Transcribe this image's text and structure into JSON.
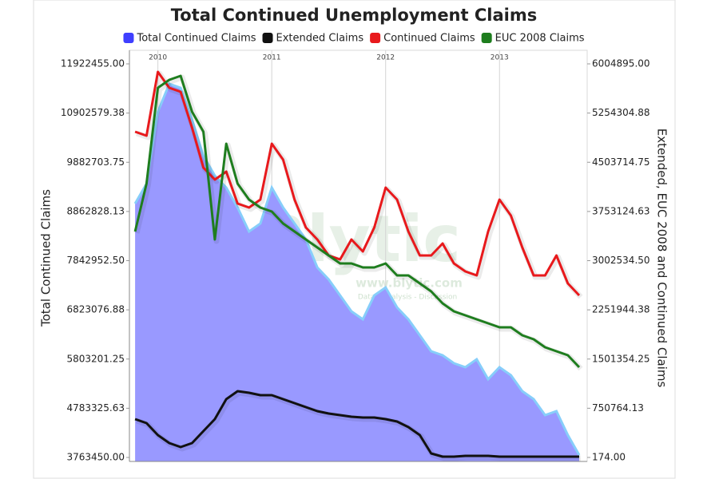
{
  "chart_data": {
    "type": "line",
    "title": "Total Continued Unemployment Claims",
    "y_label": "Total Continued Claims",
    "y2_label": "Extended, EUC 2008 and Continued Claims",
    "watermark": [
      "Blytic",
      "www.blytic.com",
      "Data - Analysis - Discussion"
    ],
    "x": [
      2009.8,
      2009.9,
      2010.0,
      2010.1,
      2010.2,
      2010.3,
      2010.4,
      2010.5,
      2010.6,
      2010.7,
      2010.8,
      2010.9,
      2011.0,
      2011.1,
      2011.2,
      2011.3,
      2011.4,
      2011.5,
      2011.6,
      2011.7,
      2011.8,
      2011.9,
      2012.0,
      2012.1,
      2012.2,
      2012.3,
      2012.4,
      2012.5,
      2012.6,
      2012.7,
      2012.8,
      2012.9,
      2013.0,
      2013.1,
      2013.2,
      2013.3,
      2013.4,
      2013.5,
      2013.6,
      2013.7
    ],
    "xlim": [
      2009.75,
      2013.77
    ],
    "xticks": [
      2010,
      2011,
      2012,
      2013
    ],
    "ylim": [
      3763450,
      11922455
    ],
    "yticks": [
      {
        "value": 3763450,
        "label": "3763450.00"
      },
      {
        "value": 4783325.63,
        "label": "4783325.63"
      },
      {
        "value": 5803201.25,
        "label": "5803201.25"
      },
      {
        "value": 6823076.88,
        "label": "6823076.88"
      },
      {
        "value": 7842952.5,
        "label": "7842952.50"
      },
      {
        "value": 8862828.13,
        "label": "8862828.13"
      },
      {
        "value": 9882703.75,
        "label": "9882703.75"
      },
      {
        "value": 10902579.38,
        "label": "10902579.38"
      },
      {
        "value": 11922455,
        "label": "11922455.00"
      }
    ],
    "y2lim": [
      174,
      6004895
    ],
    "y2ticks": [
      {
        "value": 174,
        "label": "174.00"
      },
      {
        "value": 750764.13,
        "label": "750764.13"
      },
      {
        "value": 1501354.25,
        "label": "1501354.25"
      },
      {
        "value": 2251944.38,
        "label": "2251944.38"
      },
      {
        "value": 3002534.5,
        "label": "3002534.50"
      },
      {
        "value": 3753124.63,
        "label": "3753124.63"
      },
      {
        "value": 4503714.75,
        "label": "4503714.75"
      },
      {
        "value": 5254304.88,
        "label": "5254304.88"
      },
      {
        "value": 6004895,
        "label": "6004895.00"
      }
    ],
    "grid": true,
    "legend": "top",
    "series": [
      {
        "name": "Total Continued Claims",
        "color": "#3f3fff",
        "area": true,
        "fill": "#9999ff",
        "edge": "#87cefa",
        "values": [
          9026000,
          9439000,
          10929000,
          11508000,
          11425000,
          10763000,
          10018000,
          9605000,
          9357000,
          8943000,
          8447000,
          8612000,
          9357000,
          8943000,
          8612000,
          8281000,
          7702000,
          7454000,
          7123000,
          6792000,
          6626000,
          7123000,
          7288000,
          6874000,
          6626000,
          6295000,
          5964000,
          5882000,
          5716000,
          5633000,
          5799000,
          5385000,
          5633000,
          5468000,
          5137000,
          4971000,
          4640000,
          4723000,
          4227000,
          3813000
        ]
      },
      {
        "name": "Extended Claims",
        "color": "#111111",
        "axis": "y2",
        "values": [
          584800,
          523900,
          341200,
          219400,
          158500,
          219400,
          402100,
          584800,
          889300,
          1011100,
          986800,
          950200,
          950200,
          889300,
          828400,
          767500,
          706600,
          670100,
          645700,
          621400,
          609200,
          609200,
          584800,
          548300,
          463000,
          341200,
          61100,
          12400,
          12400,
          24500,
          24500,
          24500,
          12400,
          12400,
          12400,
          12400,
          12400,
          12400,
          12400,
          12400
        ]
      },
      {
        "name": "Continued Claims",
        "color": "#e8191c",
        "axis": "y2",
        "values": [
          4969600,
          4908700,
          5883100,
          5639500,
          5578600,
          5030500,
          4421500,
          4238800,
          4360600,
          3873400,
          3812500,
          3934300,
          4786900,
          4543300,
          3934300,
          3508000,
          3325300,
          3081700,
          3020800,
          3325300,
          3142600,
          3508000,
          4117000,
          3934300,
          3447100,
          3081700,
          3081700,
          3264400,
          2959900,
          2838100,
          2777200,
          3447100,
          3934300,
          3690700,
          3203500,
          2777200,
          2777200,
          3081700,
          2655400,
          2472700
        ]
      },
      {
        "name": "EUC 2008 Claims",
        "color": "#1e7d1e",
        "axis": "y2",
        "values": [
          3447100,
          4177900,
          5639500,
          5761300,
          5822200,
          5274100,
          4969600,
          3325300,
          4786900,
          4177900,
          3934300,
          3812500,
          3751600,
          3568900,
          3447100,
          3325300,
          3203500,
          3081700,
          2959900,
          2959900,
          2899000,
          2899000,
          2959900,
          2777200,
          2777200,
          2655400,
          2533600,
          2350900,
          2229100,
          2168200,
          2107300,
          2046400,
          1985500,
          1985500,
          1863700,
          1802800,
          1681000,
          1620100,
          1559200,
          1376500
        ]
      }
    ]
  }
}
